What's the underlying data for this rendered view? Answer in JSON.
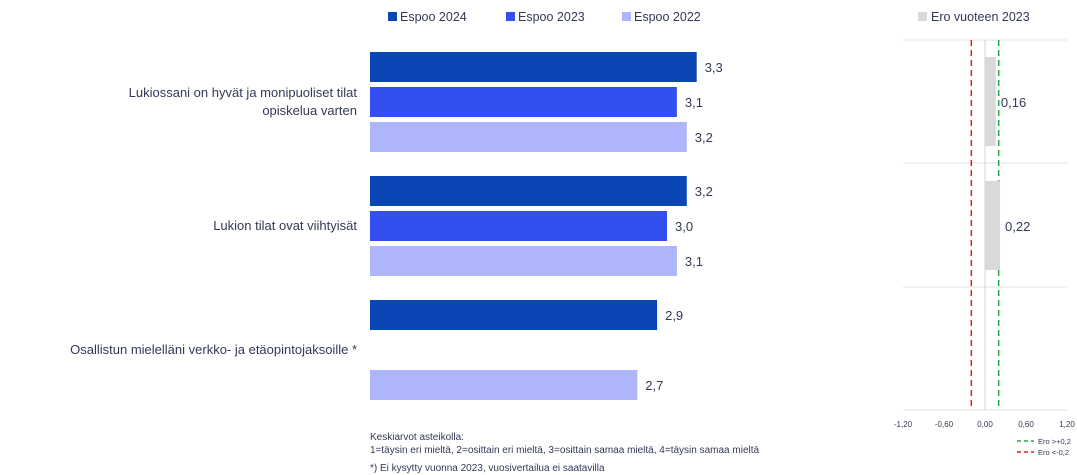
{
  "chart_data": [
    {
      "type": "bar",
      "orientation": "horizontal",
      "categories": [
        "Lukiossani on hyvät ja monipuoliset tilat opiskelua varten",
        "Lukion tilat ovat viihtyisät",
        "Osallistun mielelläni verkko- ja etäopintojaksoille *"
      ],
      "category_lines": [
        [
          "Lukiossani on hyvät ja monipuoliset tilat",
          "opiskelua varten"
        ],
        [
          "Lukion tilat ovat viihtyisät"
        ],
        [
          "Osallistun mielelläni verkko- ja etäopintojaksoille *"
        ]
      ],
      "series": [
        {
          "name": "Espoo 2024",
          "color": "#0a46b4",
          "values": [
            3.3,
            3.2,
            2.9
          ],
          "labels": [
            "3,3",
            "3,2",
            "2,9"
          ]
        },
        {
          "name": "Espoo 2023",
          "color": "#3350ee",
          "values": [
            3.1,
            3.0,
            null
          ],
          "labels": [
            "3,1",
            "3,0",
            ""
          ]
        },
        {
          "name": "Espoo 2022",
          "color": "#afb5fb",
          "values": [
            3.2,
            3.1,
            2.7
          ],
          "labels": [
            "3,2",
            "3,1",
            "2,7"
          ]
        }
      ],
      "xlim": [
        0,
        4
      ],
      "legend_position": "top"
    },
    {
      "type": "bar",
      "orientation": "horizontal",
      "series": [
        {
          "name": "Ero vuoteen 2023",
          "color": "#d9d9d9",
          "values": [
            0.16,
            0.22,
            null
          ],
          "labels": [
            "0,16",
            "0,22",
            ""
          ]
        }
      ],
      "xlim": [
        -1.2,
        1.2
      ],
      "xticks": [
        "-1,20",
        "-0,60",
        "0,00",
        "0,60",
        "1,20"
      ],
      "reference_lines": [
        {
          "label": "Ero >+0,2",
          "value": 0.2,
          "color": "#22a84a",
          "style": "dashed"
        },
        {
          "label": "Ero <-0,2",
          "value": -0.2,
          "color": "#e0201e",
          "style": "dashed"
        }
      ],
      "legend_position": "top"
    }
  ],
  "notes": [
    "Keskiarvot asteikolla:",
    "1=täysin eri mieltä, 2=osittain eri mieltä, 3=osittain samaa mieltä, 4=täysin samaa mieltä",
    "*) Ei kysytty vuonna 2023, vuosivertailua ei saatavilla"
  ]
}
